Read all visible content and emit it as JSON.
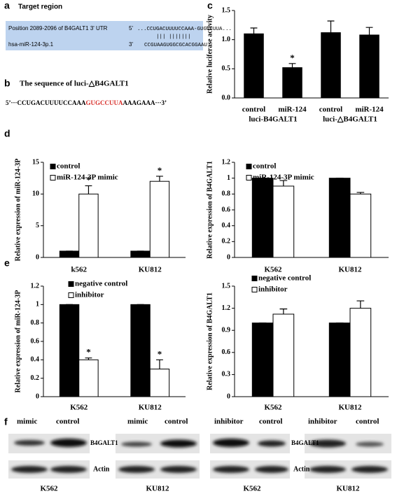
{
  "panel_labels": [
    "a",
    "b",
    "c",
    "d",
    "e",
    "f"
  ],
  "target_region": {
    "heading": "Target region",
    "position": "Position 2089-2096 of B4GALT1 3' UTR",
    "target_end": "5'",
    "target_seq": "...CCUGACUUUUCCAAA-GUGCCUUA...",
    "mirna": "hsa-miR-124-3p.1",
    "mirna_end": "3'",
    "mirna_seq": "CCGUAAGUGGCGCACGGAAU",
    "pairing": "|||   |||||||"
  },
  "mutant_sequence": {
    "heading": "The sequence of luci-△B4GALT1",
    "parts": [
      "5’···CCUGACUUUUCCAAA",
      "GUGCCUUA",
      "AAAGAAA···3’"
    ]
  },
  "chart_data": [
    {
      "type": "bar",
      "y_label": "Relative luciferase activity",
      "categories": [
        "control",
        "miR-124",
        "control",
        "miR-124"
      ],
      "group_labels": [
        "luci-B4GALT1",
        "luci-△B4GALT1"
      ],
      "series": [
        {
          "name": null,
          "color": "#000000",
          "values": [
            1.1,
            0.52,
            1.12,
            1.08
          ],
          "errors": [
            0.1,
            0.07,
            0.2,
            0.13
          ],
          "labels": [
            null,
            "*",
            null,
            null
          ]
        }
      ],
      "ylim": [
        0,
        1.5
      ],
      "yticks": [
        {
          "value": 0,
          "label": "0.0"
        },
        {
          "value": 0.5,
          "label": "0.5"
        },
        {
          "value": 1,
          "label": "1.0"
        },
        {
          "value": 1.5,
          "label": "1.5"
        }
      ]
    },
    {
      "type": "bar",
      "y_label": "Relative expression of miR-124-3P",
      "categories": [
        "k562",
        "KU812"
      ],
      "series": [
        {
          "name": "control",
          "color": "#000000",
          "values": [
            1,
            1
          ],
          "errors": [
            0,
            0
          ],
          "labels": [
            null,
            null
          ]
        },
        {
          "name": "miR-124-3P mimic",
          "color": "#ffffff",
          "values": [
            10,
            12
          ],
          "errors": [
            1.3,
            0.8
          ],
          "labels": [
            "*",
            "*"
          ]
        }
      ],
      "ylim": [
        0,
        15
      ],
      "yticks": [
        0,
        5,
        10,
        15
      ]
    },
    {
      "type": "bar",
      "y_label": "Relative expression of B4GALT1",
      "categories": [
        "K562",
        "KU812"
      ],
      "series": [
        {
          "name": "control",
          "color": "#000000",
          "values": [
            1,
            1
          ],
          "errors": [
            0,
            0
          ],
          "labels": [
            null,
            null
          ]
        },
        {
          "name": "miR-124-3P mimic",
          "color": "#ffffff",
          "values": [
            0.9,
            0.8
          ],
          "errors": [
            0.07,
            0.02
          ],
          "labels": [
            null,
            null
          ]
        }
      ],
      "ylim": [
        0,
        1.2
      ],
      "yticks": [
        0,
        0.2,
        0.4,
        0.6,
        0.8,
        1,
        1.2
      ]
    },
    {
      "type": "bar",
      "y_label": "Relative expression of miR-124-3P",
      "categories": [
        "K562",
        "KU812"
      ],
      "series": [
        {
          "name": "negative control",
          "color": "#000000",
          "values": [
            1,
            1
          ],
          "errors": [
            0,
            0
          ],
          "labels": [
            null,
            null
          ]
        },
        {
          "name": "inhibitor",
          "color": "#ffffff",
          "values": [
            0.4,
            0.3
          ],
          "errors": [
            0.02,
            0.1
          ],
          "labels": [
            "*",
            "*"
          ]
        }
      ],
      "ylim": [
        0,
        1.2
      ],
      "yticks": [
        0,
        0.2,
        0.4,
        0.6,
        0.8,
        1,
        1.2
      ]
    },
    {
      "type": "bar",
      "y_label": "Relative expression of B4GALT1",
      "categories": [
        "K562",
        "KU812"
      ],
      "series": [
        {
          "name": "negative control",
          "color": "#000000",
          "values": [
            1,
            1
          ],
          "errors": [
            0,
            0
          ],
          "labels": [
            null,
            null
          ]
        },
        {
          "name": "inhibitor",
          "color": "#ffffff",
          "values": [
            1.12,
            1.2
          ],
          "errors": [
            0.07,
            0.1
          ],
          "labels": [
            null,
            null
          ]
        }
      ],
      "ylim": [
        0,
        1.5
      ],
      "yticks": [
        0,
        0.3,
        0.6,
        0.9,
        1.2,
        1.5
      ]
    }
  ],
  "blots": [
    {
      "columns": [
        "mimic",
        "control"
      ],
      "rows": [
        "B4GALT1",
        "Actin"
      ],
      "cell": "K562"
    },
    {
      "columns": [
        "mimic",
        "control"
      ],
      "cell": "KU812"
    },
    {
      "columns": [
        "inhibitor",
        "control"
      ],
      "rows": [
        "B4GALT1",
        "Actin"
      ],
      "cell": "K562"
    },
    {
      "columns": [
        "inhibitor",
        "control"
      ],
      "cell": "KU812"
    }
  ]
}
